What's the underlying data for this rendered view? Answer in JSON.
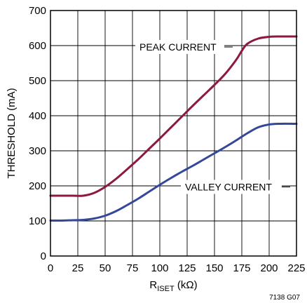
{
  "chart_data": {
    "type": "line",
    "xlabel_main": "R",
    "xlabel_sub": "ISET",
    "xlabel_unit": " (kΩ)",
    "ylabel": "THRESHOLD (mA)",
    "xlim": [
      0,
      225
    ],
    "ylim": [
      0,
      700
    ],
    "xticks": [
      0,
      25,
      50,
      75,
      100,
      125,
      150,
      175,
      200,
      225
    ],
    "yticks": [
      0,
      100,
      200,
      300,
      400,
      500,
      600,
      700
    ],
    "grid": true,
    "figure_id": "7138 G07",
    "series": [
      {
        "name": "PEAK CURRENT",
        "color": "#8b1a3c",
        "x": [
          0,
          10,
          20,
          30,
          40,
          50,
          60,
          70,
          80,
          90,
          100,
          110,
          120,
          130,
          140,
          150,
          160,
          170,
          175,
          180,
          190,
          200,
          210,
          225
        ],
        "y": [
          172,
          172,
          172,
          172,
          180,
          197,
          220,
          247,
          275,
          305,
          335,
          366,
          397,
          428,
          458,
          488,
          520,
          560,
          585,
          605,
          620,
          625,
          626,
          626
        ]
      },
      {
        "name": "VALLEY CURRENT",
        "color": "#34489a",
        "x": [
          0,
          10,
          20,
          30,
          40,
          50,
          60,
          70,
          80,
          90,
          100,
          110,
          120,
          130,
          140,
          150,
          160,
          170,
          180,
          190,
          200,
          210,
          225
        ],
        "y": [
          101,
          101,
          102,
          103,
          107,
          115,
          128,
          145,
          163,
          183,
          203,
          222,
          240,
          257,
          275,
          293,
          311,
          330,
          350,
          367,
          375,
          377,
          377
        ]
      }
    ],
    "annotations": [
      {
        "text": "PEAK CURRENT",
        "series": 0
      },
      {
        "text": "VALLEY CURRENT",
        "series": 1
      }
    ]
  }
}
